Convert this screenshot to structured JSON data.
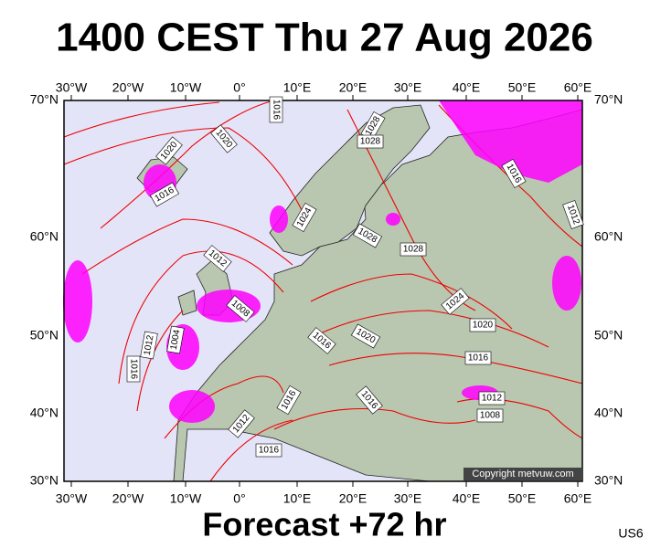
{
  "header": {
    "title": "1400 CEST Thu 27 Aug 2026"
  },
  "map": {
    "longitude_labels": [
      "30°W",
      "20°W",
      "10°W",
      "0°",
      "10°E",
      "20°E",
      "30°E",
      "40°E",
      "50°E",
      "60°E"
    ],
    "latitude_labels": [
      "70°N",
      "60°N",
      "50°N",
      "40°N",
      "30°N"
    ],
    "isobar_labels": [
      "1020",
      "1020",
      "1016",
      "1016",
      "1028",
      "1028",
      "1024",
      "1028",
      "1028",
      "1016",
      "1012",
      "1012",
      "1008",
      "1004",
      "1012",
      "1016",
      "1016",
      "1020",
      "1024",
      "1020",
      "1016",
      "1016",
      "1016",
      "1012",
      "1008",
      "1012",
      "1016"
    ],
    "copyright": "Copyright metvuw.com"
  },
  "footer": {
    "forecast": "Forecast +72 hr",
    "code": "US6"
  }
}
